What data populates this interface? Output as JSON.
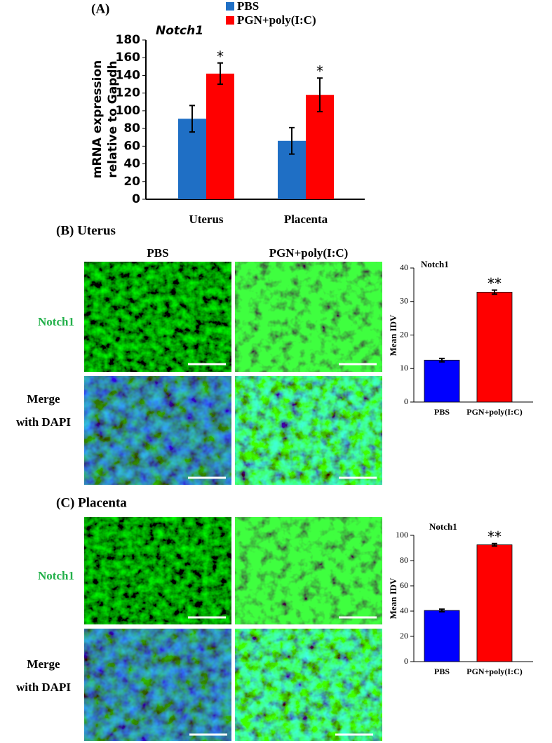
{
  "chart_data": [
    {
      "type": "bar",
      "panel_label": "(A)",
      "title": "Notch1",
      "y_label": [
        "mRNA expression",
        "relative to Gapdh"
      ],
      "categories": [
        "Uterus",
        "Placenta"
      ],
      "series": [
        {
          "name": "PBS",
          "color": "#1f6fc5",
          "values": [
            91,
            66
          ],
          "errors": [
            15,
            15
          ],
          "annotations": [
            null,
            null
          ]
        },
        {
          "name": "PGN+poly(I:C)",
          "color": "#ff0000",
          "values": [
            142,
            118
          ],
          "errors": [
            12,
            19
          ],
          "annotations": [
            "*",
            "*"
          ]
        }
      ],
      "ylim": [
        0,
        180
      ],
      "yticks": [
        0,
        20,
        40,
        60,
        80,
        100,
        120,
        140,
        160,
        180
      ]
    },
    {
      "type": "bar",
      "panel_label": "(B) Uterus",
      "title": "Notch1",
      "y_label": [
        "Mean IDV"
      ],
      "categories": [
        "PBS",
        "PGN+poly(I:C)"
      ],
      "values": [
        12.5,
        32.8
      ],
      "errors": [
        0.5,
        0.6
      ],
      "colors": [
        "#0000ff",
        "#ff0000"
      ],
      "annotations": [
        null,
        "**"
      ],
      "ylim": [
        0,
        40
      ],
      "yticks": [
        0,
        10,
        20,
        30,
        40
      ]
    },
    {
      "type": "bar",
      "panel_label": "(C) Placenta",
      "title": "Notch1",
      "y_label": [
        "Mean IDV"
      ],
      "categories": [
        "PBS",
        "PGN+poly(I:C)"
      ],
      "values": [
        40.5,
        92.5
      ],
      "errors": [
        1,
        1
      ],
      "colors": [
        "#0000ff",
        "#ff0000"
      ],
      "annotations": [
        null,
        "**"
      ],
      "ylim": [
        0,
        100
      ],
      "yticks": [
        0,
        20,
        40,
        60,
        80,
        100
      ]
    }
  ],
  "image_panels": [
    {
      "columns": [
        "PBS",
        "PGN+poly(I:C)"
      ],
      "rows": [
        [
          "Notch1"
        ],
        [
          "Merge",
          "with DAPI"
        ]
      ]
    },
    {
      "rows": [
        [
          "Notch1"
        ],
        [
          "Merge",
          "with DAPI"
        ]
      ]
    }
  ]
}
